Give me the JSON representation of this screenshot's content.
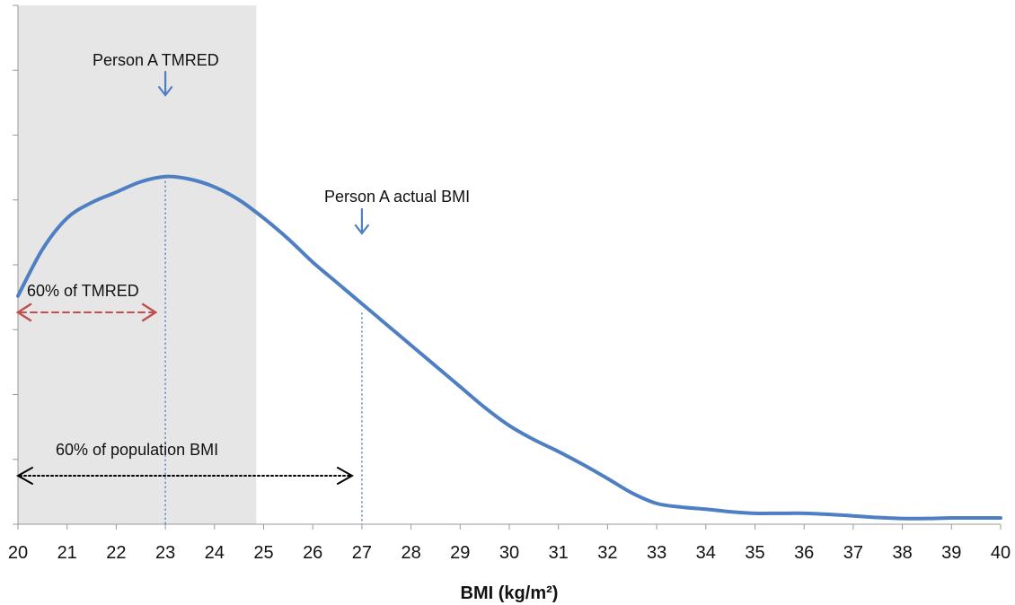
{
  "chart_data": {
    "type": "line",
    "title": "",
    "xlabel": "BMI (kg/m²)",
    "ylabel": "",
    "xlim": [
      20,
      40
    ],
    "ylim": [
      0,
      1
    ],
    "grid": false,
    "legend": "none",
    "x_tick_labels": [
      "20",
      "21",
      "22",
      "23",
      "24",
      "25",
      "26",
      "27",
      "28",
      "29",
      "30",
      "31",
      "32",
      "33",
      "34",
      "35",
      "36",
      "37",
      "38",
      "39",
      "40"
    ],
    "y_tick_count": 8,
    "shaded_region": {
      "x_start": 20,
      "x_end": 24.85,
      "color": "#e6e6e6"
    },
    "series": [
      {
        "color": "#4f7fc3",
        "points": [
          [
            20,
            0.44
          ],
          [
            20.5,
            0.53
          ],
          [
            21,
            0.59
          ],
          [
            21.5,
            0.62
          ],
          [
            22,
            0.64
          ],
          [
            22.5,
            0.66
          ],
          [
            23,
            0.67
          ],
          [
            23.5,
            0.665
          ],
          [
            24,
            0.65
          ],
          [
            24.5,
            0.625
          ],
          [
            25,
            0.59
          ],
          [
            25.5,
            0.55
          ],
          [
            26,
            0.505
          ],
          [
            26.5,
            0.465
          ],
          [
            27,
            0.425
          ],
          [
            27.5,
            0.385
          ],
          [
            28,
            0.345
          ],
          [
            28.5,
            0.305
          ],
          [
            29,
            0.265
          ],
          [
            29.5,
            0.225
          ],
          [
            30,
            0.19
          ],
          [
            30.5,
            0.163
          ],
          [
            31,
            0.14
          ],
          [
            31.5,
            0.115
          ],
          [
            32,
            0.088
          ],
          [
            32.5,
            0.06
          ],
          [
            33,
            0.04
          ],
          [
            33.5,
            0.033
          ],
          [
            34,
            0.029
          ],
          [
            34.5,
            0.024
          ],
          [
            35,
            0.021
          ],
          [
            35.5,
            0.021
          ],
          [
            36,
            0.021
          ],
          [
            36.5,
            0.019
          ],
          [
            37,
            0.016
          ],
          [
            37.5,
            0.013
          ],
          [
            38,
            0.011
          ],
          [
            38.5,
            0.011
          ],
          [
            39,
            0.012
          ],
          [
            39.5,
            0.012
          ],
          [
            40,
            0.012
          ]
        ]
      }
    ],
    "annotations": {
      "tmred": {
        "text": "Person A TMRED",
        "x": 23
      },
      "actual_bmi": {
        "text": "Person A actual BMI",
        "x": 27
      },
      "tmred_span": {
        "text": "60% of TMRED",
        "x_start": 20,
        "x_end": 22.8,
        "color": "#c0504d"
      },
      "population_span": {
        "text": "60% of population BMI",
        "x_start": 20,
        "x_end": 26.8,
        "color": "#000000"
      }
    }
  }
}
